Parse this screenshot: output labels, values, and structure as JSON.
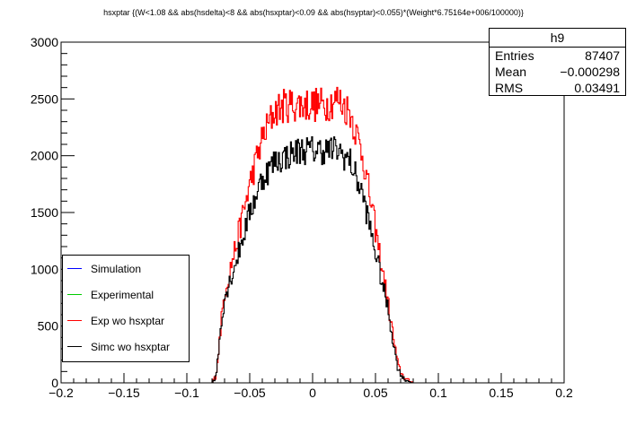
{
  "title": "hsxptar {(W<1.08 && abs(hsdelta)<8 && abs(hsxptar)<0.09 && abs(hsyptar)<0.055)*(Weight*6.75164e+006/100000)}",
  "statbox": {
    "name": "h9",
    "rows": [
      {
        "label": "Entries",
        "value": "87407"
      },
      {
        "label": "Mean",
        "value": "−0.000298"
      },
      {
        "label": "RMS",
        "value": "0.03491"
      }
    ]
  },
  "legend": [
    {
      "label": "Simulation",
      "color": "#0000ff"
    },
    {
      "label": "Experimental",
      "color": "#00cc00"
    },
    {
      "label": "Exp wo hsxptar",
      "color": "#ff0000"
    },
    {
      "label": "Simc wo hsxptar",
      "color": "#000000"
    }
  ],
  "chart_data": {
    "type": "histogram",
    "xlim": [
      -0.2,
      0.2
    ],
    "ylim": [
      0,
      3000
    ],
    "x_ticks": [
      -0.2,
      -0.15,
      -0.1,
      -0.05,
      0,
      0.05,
      0.1,
      0.15,
      0.2
    ],
    "x_tick_labels": [
      "−0.2",
      "−0.15",
      "−0.1",
      "−0.05",
      "0",
      "0.05",
      "0.1",
      "0.15",
      "0.2"
    ],
    "y_ticks": [
      0,
      500,
      1000,
      1500,
      2000,
      2500,
      3000
    ],
    "y_tick_labels": [
      "0",
      "500",
      "1000",
      "1500",
      "2000",
      "2500",
      "3000"
    ],
    "series": [
      {
        "name": "Exp wo hsxptar",
        "color": "#ff0000",
        "envelope_x": [
          -0.1,
          -0.08,
          -0.077,
          -0.075,
          -0.073,
          -0.07,
          -0.06,
          -0.05,
          -0.04,
          -0.03,
          -0.02,
          -0.01,
          0,
          0.01,
          0.02,
          0.03,
          0.04,
          0.05,
          0.06,
          0.065,
          0.068,
          0.07,
          0.073,
          0.08,
          0.1
        ],
        "envelope_y": [
          0,
          0,
          60,
          250,
          500,
          800,
          1250,
          1750,
          2150,
          2400,
          2450,
          2450,
          2450,
          2450,
          2500,
          2380,
          2000,
          1350,
          700,
          350,
          150,
          100,
          40,
          0,
          0
        ]
      },
      {
        "name": "Simc wo hsxptar",
        "color": "#000000",
        "envelope_x": [
          -0.1,
          -0.08,
          -0.077,
          -0.075,
          -0.073,
          -0.07,
          -0.06,
          -0.05,
          -0.04,
          -0.03,
          -0.02,
          -0.01,
          0,
          0.01,
          0.02,
          0.03,
          0.04,
          0.05,
          0.06,
          0.065,
          0.068,
          0.07,
          0.073,
          0.08,
          0.1
        ],
        "envelope_y": [
          0,
          0,
          50,
          250,
          500,
          750,
          1100,
          1500,
          1800,
          1950,
          2000,
          2050,
          2050,
          2050,
          2050,
          1950,
          1650,
          1150,
          650,
          300,
          120,
          80,
          30,
          0,
          0
        ]
      }
    ]
  }
}
